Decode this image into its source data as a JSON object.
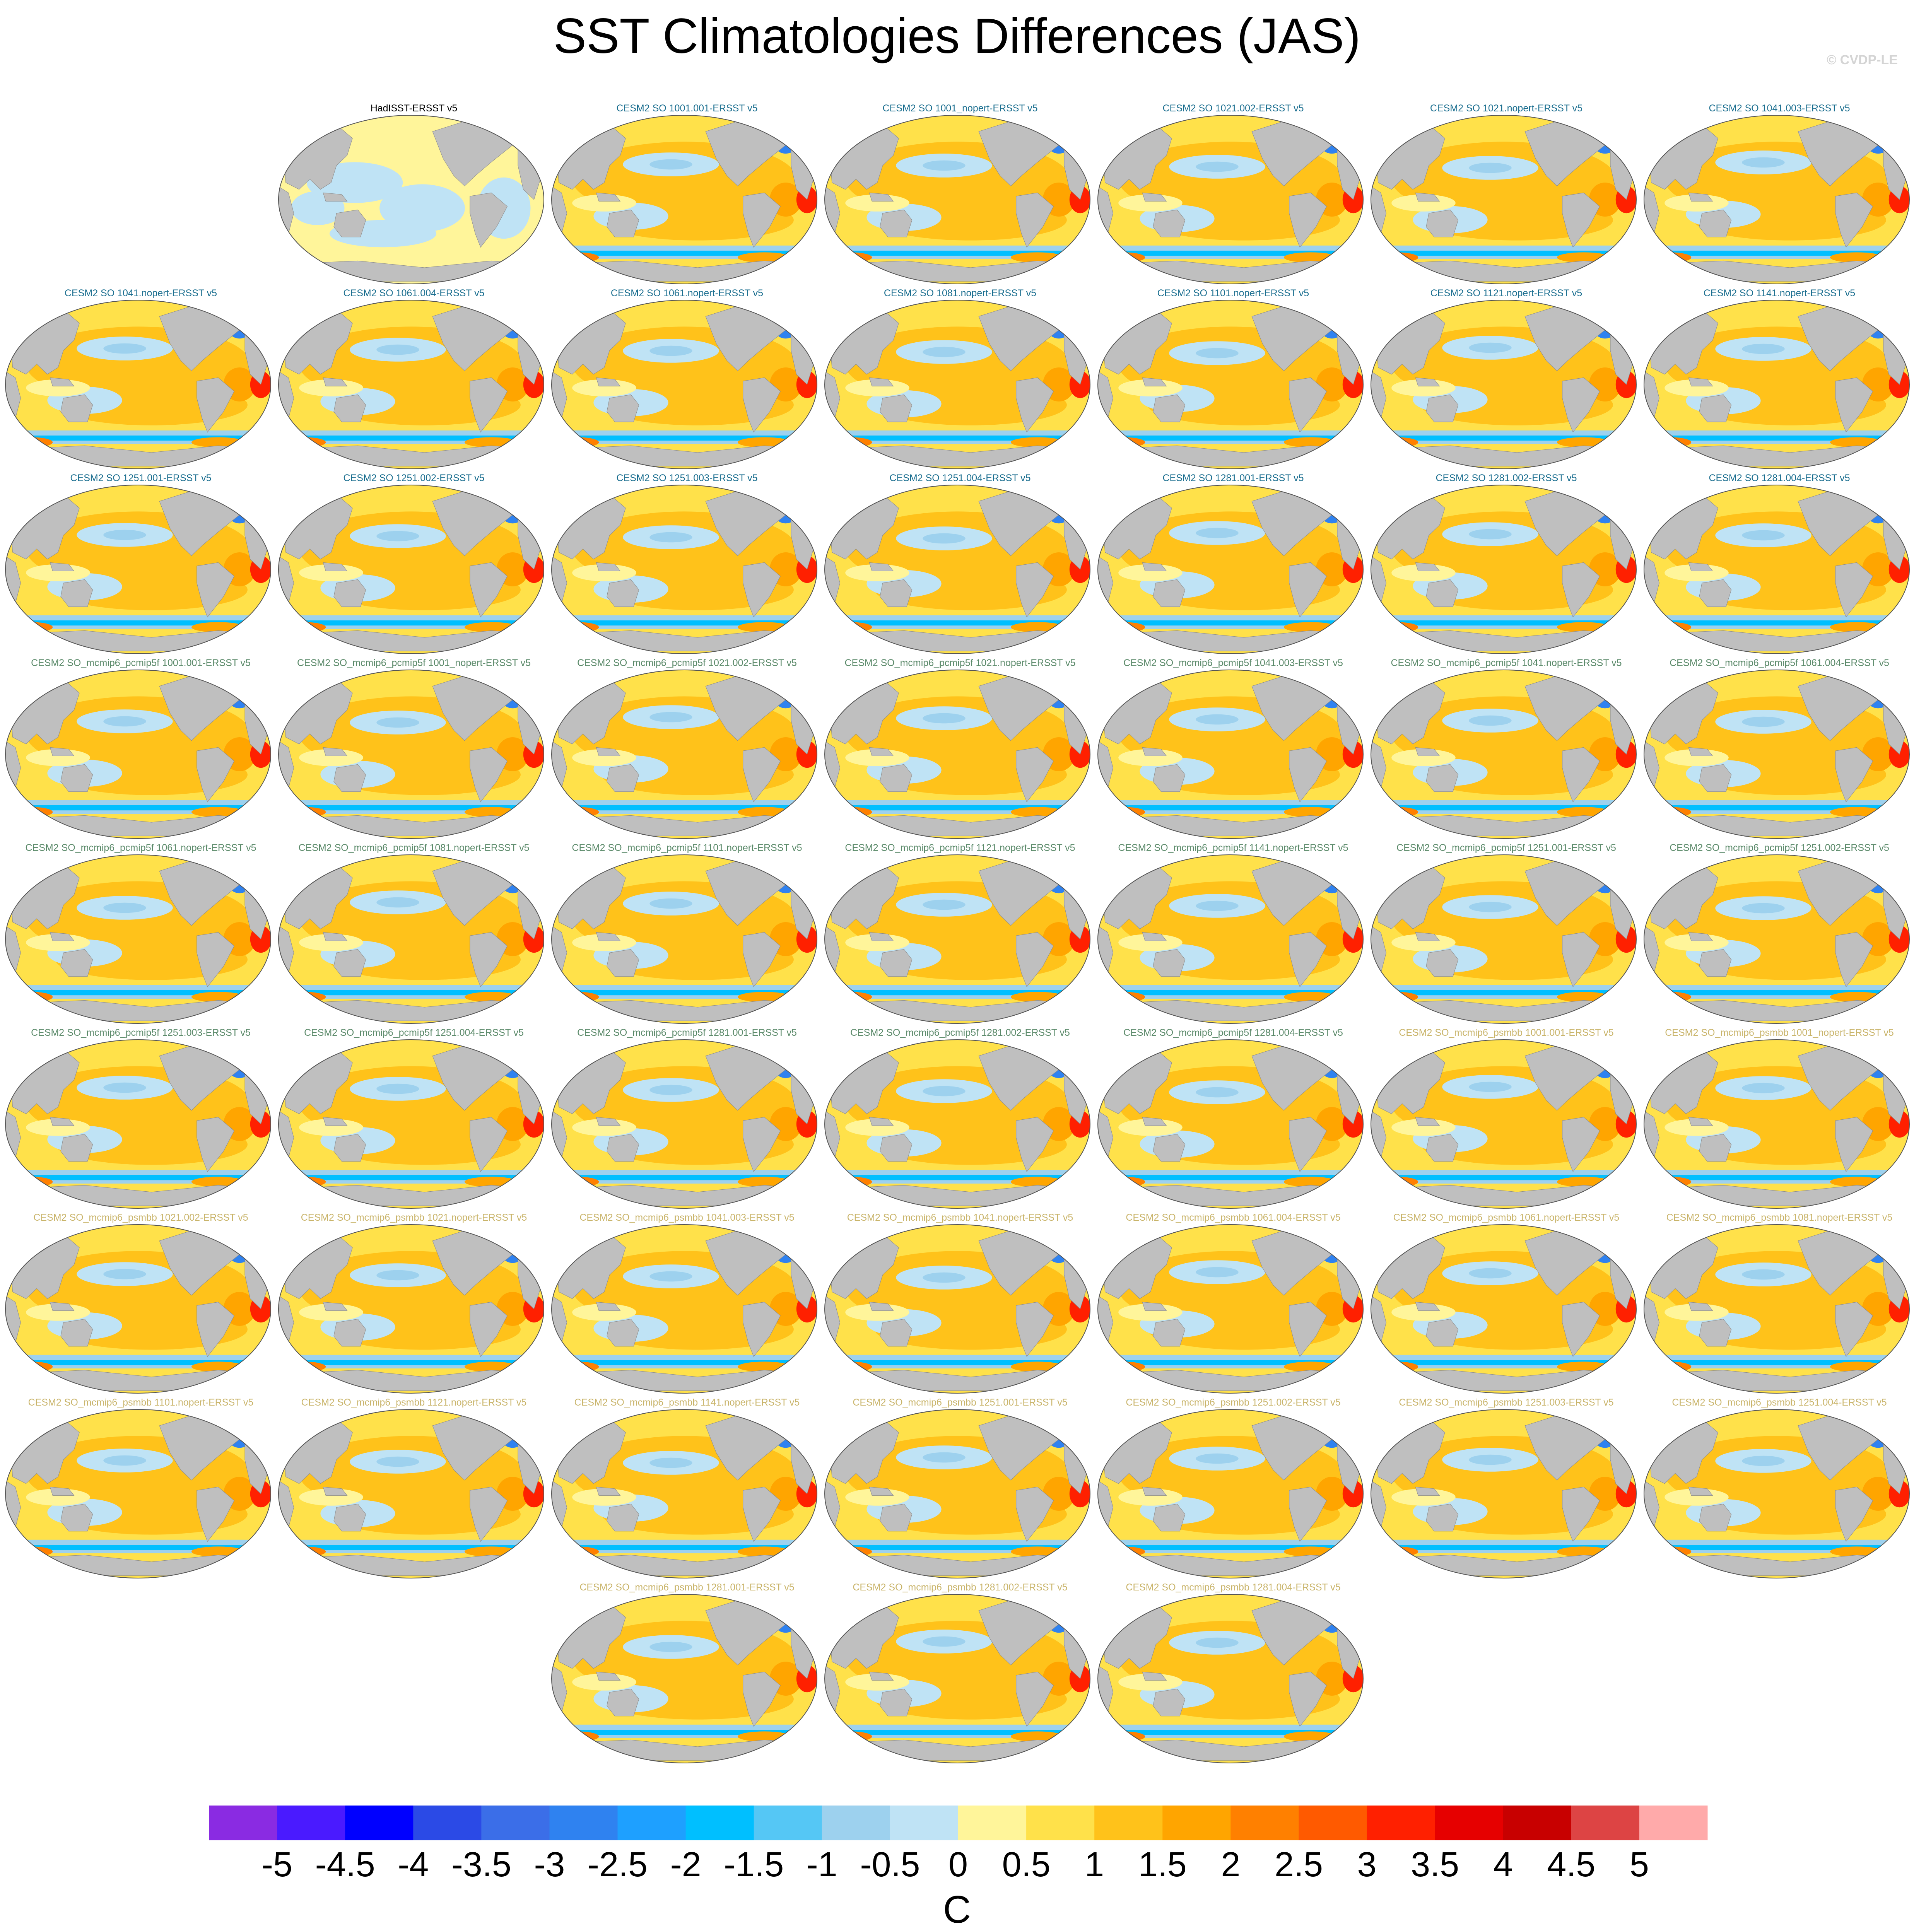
{
  "title": "SST Climatologies Differences (JAS)",
  "credit": "© CVDP-LE",
  "chart_data": {
    "type": "heatmap",
    "title": "SST Climatologies Differences (JAS)",
    "variable": "SST climatology difference",
    "season": "JAS",
    "units": "C",
    "projection": "Robinson (Pacific-centered global map)",
    "land_color": "#bfbfbf",
    "colorbar": {
      "levels": [
        "-5",
        "-4.5",
        "-4",
        "-3.5",
        "-3",
        "-2.5",
        "-2",
        "-1.5",
        "-1",
        "-0.5",
        "0",
        "0.5",
        "1",
        "1.5",
        "2",
        "2.5",
        "3",
        "3.5",
        "4",
        "4.5",
        "5"
      ],
      "colors": [
        "#8a2be2",
        "#4a1aff",
        "#0000ff",
        "#2b4ae6",
        "#3b6ee8",
        "#2f82f0",
        "#1ea0ff",
        "#00bfff",
        "#55c7f5",
        "#9dd1ee",
        "#bfe3f5",
        "#fff59a",
        "#ffe14a",
        "#ffc21a",
        "#ffa500",
        "#ff8000",
        "#ff5a00",
        "#ff2000",
        "#e60000",
        "#c80000",
        "#dd4444",
        "#ffaaaa"
      ],
      "label": "C",
      "placement": "bottom"
    },
    "panels": [
      {
        "name": "HadISST-ERSST v5",
        "group": "observations",
        "color": "#000000"
      },
      {
        "name": "CESM2 SO 1001.001-ERSST v5",
        "group": "CESM2 SO",
        "color": "#1a6e8f"
      },
      {
        "name": "CESM2 SO 1001_nopert-ERSST v5",
        "group": "CESM2 SO",
        "color": "#1a6e8f"
      },
      {
        "name": "CESM2 SO 1021.002-ERSST v5",
        "group": "CESM2 SO",
        "color": "#1a6e8f"
      },
      {
        "name": "CESM2 SO 1021.nopert-ERSST v5",
        "group": "CESM2 SO",
        "color": "#1a6e8f"
      },
      {
        "name": "CESM2 SO 1041.003-ERSST v5",
        "group": "CESM2 SO",
        "color": "#1a6e8f"
      },
      {
        "name": "CESM2 SO 1041.nopert-ERSST v5",
        "group": "CESM2 SO",
        "color": "#1a6e8f"
      },
      {
        "name": "CESM2 SO 1061.004-ERSST v5",
        "group": "CESM2 SO",
        "color": "#1a6e8f"
      },
      {
        "name": "CESM2 SO 1061.nopert-ERSST v5",
        "group": "CESM2 SO",
        "color": "#1a6e8f"
      },
      {
        "name": "CESM2 SO 1081.nopert-ERSST v5",
        "group": "CESM2 SO",
        "color": "#1a6e8f"
      },
      {
        "name": "CESM2 SO 1101.nopert-ERSST v5",
        "group": "CESM2 SO",
        "color": "#1a6e8f"
      },
      {
        "name": "CESM2 SO 1121.nopert-ERSST v5",
        "group": "CESM2 SO",
        "color": "#1a6e8f"
      },
      {
        "name": "CESM2 SO 1141.nopert-ERSST v5",
        "group": "CESM2 SO",
        "color": "#1a6e8f"
      },
      {
        "name": "CESM2 SO 1251.001-ERSST v5",
        "group": "CESM2 SO",
        "color": "#1a6e8f"
      },
      {
        "name": "CESM2 SO 1251.002-ERSST v5",
        "group": "CESM2 SO",
        "color": "#1a6e8f"
      },
      {
        "name": "CESM2 SO 1251.003-ERSST v5",
        "group": "CESM2 SO",
        "color": "#1a6e8f"
      },
      {
        "name": "CESM2 SO 1251.004-ERSST v5",
        "group": "CESM2 SO",
        "color": "#1a6e8f"
      },
      {
        "name": "CESM2 SO 1281.001-ERSST v5",
        "group": "CESM2 SO",
        "color": "#1a6e8f"
      },
      {
        "name": "CESM2 SO 1281.002-ERSST v5",
        "group": "CESM2 SO",
        "color": "#1a6e8f"
      },
      {
        "name": "CESM2 SO 1281.004-ERSST v5",
        "group": "CESM2 SO",
        "color": "#1a6e8f"
      },
      {
        "name": "CESM2 SO_mcmip6_pcmip5f 1001.001-ERSST v5",
        "group": "pcmip5f",
        "color": "#5b8a6a"
      },
      {
        "name": "CESM2 SO_mcmip6_pcmip5f 1001_nopert-ERSST v5",
        "group": "pcmip5f",
        "color": "#5b8a6a"
      },
      {
        "name": "CESM2 SO_mcmip6_pcmip5f 1021.002-ERSST v5",
        "group": "pcmip5f",
        "color": "#5b8a6a"
      },
      {
        "name": "CESM2 SO_mcmip6_pcmip5f 1021.nopert-ERSST v5",
        "group": "pcmip5f",
        "color": "#5b8a6a"
      },
      {
        "name": "CESM2 SO_mcmip6_pcmip5f 1041.003-ERSST v5",
        "group": "pcmip5f",
        "color": "#5b8a6a"
      },
      {
        "name": "CESM2 SO_mcmip6_pcmip5f 1041.nopert-ERSST v5",
        "group": "pcmip5f",
        "color": "#5b8a6a"
      },
      {
        "name": "CESM2 SO_mcmip6_pcmip5f 1061.004-ERSST v5",
        "group": "pcmip5f",
        "color": "#5b8a6a"
      },
      {
        "name": "CESM2 SO_mcmip6_pcmip5f 1061.nopert-ERSST v5",
        "group": "pcmip5f",
        "color": "#5b8a6a"
      },
      {
        "name": "CESM2 SO_mcmip6_pcmip5f 1081.nopert-ERSST v5",
        "group": "pcmip5f",
        "color": "#5b8a6a"
      },
      {
        "name": "CESM2 SO_mcmip6_pcmip5f 1101.nopert-ERSST v5",
        "group": "pcmip5f",
        "color": "#5b8a6a"
      },
      {
        "name": "CESM2 SO_mcmip6_pcmip5f 1121.nopert-ERSST v5",
        "group": "pcmip5f",
        "color": "#5b8a6a"
      },
      {
        "name": "CESM2 SO_mcmip6_pcmip5f 1141.nopert-ERSST v5",
        "group": "pcmip5f",
        "color": "#5b8a6a"
      },
      {
        "name": "CESM2 SO_mcmip6_pcmip5f 1251.001-ERSST v5",
        "group": "pcmip5f",
        "color": "#5b8a6a"
      },
      {
        "name": "CESM2 SO_mcmip6_pcmip5f 1251.002-ERSST v5",
        "group": "pcmip5f",
        "color": "#5b8a6a"
      },
      {
        "name": "CESM2 SO_mcmip6_pcmip5f 1251.003-ERSST v5",
        "group": "pcmip5f",
        "color": "#5b8a6a"
      },
      {
        "name": "CESM2 SO_mcmip6_pcmip5f 1251.004-ERSST v5",
        "group": "pcmip5f",
        "color": "#5b8a6a"
      },
      {
        "name": "CESM2 SO_mcmip6_pcmip5f 1281.001-ERSST v5",
        "group": "pcmip5f",
        "color": "#5b8a6a"
      },
      {
        "name": "CESM2 SO_mcmip6_pcmip5f 1281.002-ERSST v5",
        "group": "pcmip5f",
        "color": "#5b8a6a"
      },
      {
        "name": "CESM2 SO_mcmip6_pcmip5f 1281.004-ERSST v5",
        "group": "pcmip5f",
        "color": "#5b8a6a"
      },
      {
        "name": "CESM2 SO_mcmip6_psmbb 1001.001-ERSST v5",
        "group": "psmbb",
        "color": "#c9b46a"
      },
      {
        "name": "CESM2 SO_mcmip6_psmbb 1001_nopert-ERSST v5",
        "group": "psmbb",
        "color": "#c9b46a"
      },
      {
        "name": "CESM2 SO_mcmip6_psmbb 1021.002-ERSST v5",
        "group": "psmbb",
        "color": "#c9b46a"
      },
      {
        "name": "CESM2 SO_mcmip6_psmbb 1021.nopert-ERSST v5",
        "group": "psmbb",
        "color": "#c9b46a"
      },
      {
        "name": "CESM2 SO_mcmip6_psmbb 1041.003-ERSST v5",
        "group": "psmbb",
        "color": "#c9b46a"
      },
      {
        "name": "CESM2 SO_mcmip6_psmbb 1041.nopert-ERSST v5",
        "group": "psmbb",
        "color": "#c9b46a"
      },
      {
        "name": "CESM2 SO_mcmip6_psmbb 1061.004-ERSST v5",
        "group": "psmbb",
        "color": "#c9b46a"
      },
      {
        "name": "CESM2 SO_mcmip6_psmbb 1061.nopert-ERSST v5",
        "group": "psmbb",
        "color": "#c9b46a"
      },
      {
        "name": "CESM2 SO_mcmip6_psmbb 1081.nopert-ERSST v5",
        "group": "psmbb",
        "color": "#c9b46a"
      },
      {
        "name": "CESM2 SO_mcmip6_psmbb 1101.nopert-ERSST v5",
        "group": "psmbb",
        "color": "#c9b46a"
      },
      {
        "name": "CESM2 SO_mcmip6_psmbb 1121.nopert-ERSST v5",
        "group": "psmbb",
        "color": "#c9b46a"
      },
      {
        "name": "CESM2 SO_mcmip6_psmbb 1141.nopert-ERSST v5",
        "group": "psmbb",
        "color": "#c9b46a"
      },
      {
        "name": "CESM2 SO_mcmip6_psmbb 1251.001-ERSST v5",
        "group": "psmbb",
        "color": "#c9b46a"
      },
      {
        "name": "CESM2 SO_mcmip6_psmbb 1251.002-ERSST v5",
        "group": "psmbb",
        "color": "#c9b46a"
      },
      {
        "name": "CESM2 SO_mcmip6_psmbb 1251.003-ERSST v5",
        "group": "psmbb",
        "color": "#c9b46a"
      },
      {
        "name": "CESM2 SO_mcmip6_psmbb 1251.004-ERSST v5",
        "group": "psmbb",
        "color": "#c9b46a"
      },
      {
        "name": "CESM2 SO_mcmip6_psmbb 1281.001-ERSST v5",
        "group": "psmbb",
        "color": "#c9b46a"
      },
      {
        "name": "CESM2 SO_mcmip6_psmbb 1281.002-ERSST v5",
        "group": "psmbb",
        "color": "#c9b46a"
      },
      {
        "name": "CESM2 SO_mcmip6_psmbb 1281.004-ERSST v5",
        "group": "psmbb",
        "color": "#c9b46a"
      }
    ]
  }
}
